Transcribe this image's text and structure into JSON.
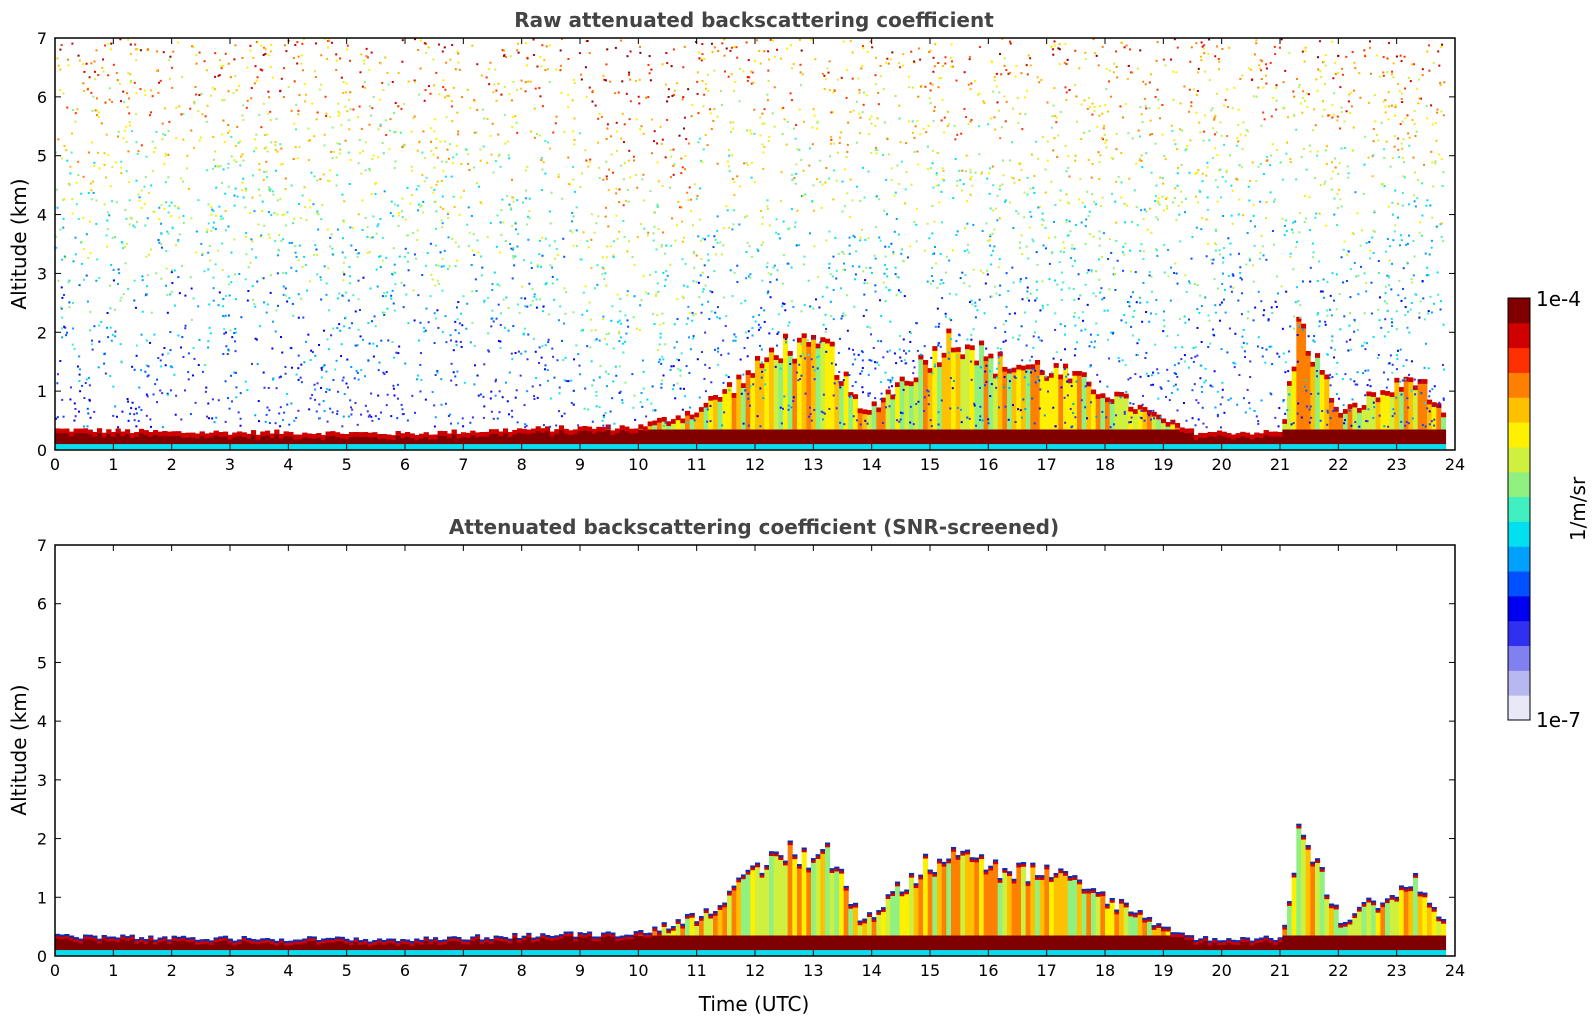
{
  "chart_data": [
    {
      "type": "heatmap",
      "title": "Raw attenuated backscattering coefficient",
      "xlabel": "",
      "ylabel": "Altitude (km)",
      "xlim": [
        0,
        24
      ],
      "ylim": [
        0,
        7
      ],
      "x_ticks": [
        "0",
        "1",
        "2",
        "3",
        "4",
        "5",
        "6",
        "7",
        "8",
        "9",
        "10",
        "11",
        "12",
        "13",
        "14",
        "15",
        "16",
        "17",
        "18",
        "19",
        "20",
        "21",
        "22",
        "23",
        "24"
      ],
      "y_ticks": [
        "0",
        "1",
        "2",
        "3",
        "4",
        "5",
        "6",
        "7"
      ],
      "aerosol_layer_top_km": {
        "x": [
          0,
          2,
          4,
          6,
          8,
          10,
          11,
          12,
          12.4,
          13,
          13.2,
          13.8,
          15.3,
          15.6,
          16,
          17,
          18,
          19,
          19.5,
          20,
          21,
          21.3,
          22,
          22.5,
          23,
          23.3,
          23.8
        ],
        "y": [
          0.35,
          0.3,
          0.3,
          0.28,
          0.35,
          0.4,
          0.7,
          1.4,
          1.8,
          1.7,
          1.8,
          0.6,
          1.9,
          1.9,
          1.5,
          1.4,
          1.0,
          0.5,
          0.3,
          0.3,
          0.3,
          2.2,
          0.6,
          0.9,
          1.1,
          1.3,
          0.5
        ]
      },
      "noise": "dense speckle above boundary layer; warmer colors aloft, strongest 9-11 UTC"
    },
    {
      "type": "heatmap",
      "title": "Attenuated backscattering coefficient (SNR-screened)",
      "xlabel": "Time (UTC)",
      "ylabel": "Altitude (km)",
      "xlim": [
        0,
        24
      ],
      "ylim": [
        0,
        7
      ],
      "x_ticks": [
        "0",
        "1",
        "2",
        "3",
        "4",
        "5",
        "6",
        "7",
        "8",
        "9",
        "10",
        "11",
        "12",
        "13",
        "14",
        "15",
        "16",
        "17",
        "18",
        "19",
        "20",
        "21",
        "22",
        "23",
        "24"
      ],
      "y_ticks": [
        "0",
        "1",
        "2",
        "3",
        "4",
        "5",
        "6",
        "7"
      ],
      "aerosol_layer_top_km": {
        "x": [
          0,
          2,
          4,
          6,
          8,
          10,
          11,
          12,
          12.4,
          13,
          13.2,
          13.8,
          15.3,
          15.6,
          16,
          17,
          18,
          19,
          19.5,
          20,
          21,
          21.3,
          22,
          22.5,
          23,
          23.3,
          23.8
        ],
        "y": [
          0.35,
          0.3,
          0.3,
          0.28,
          0.35,
          0.4,
          0.7,
          1.4,
          1.8,
          1.7,
          1.8,
          0.6,
          1.9,
          1.9,
          1.5,
          1.4,
          1.0,
          0.5,
          0.3,
          0.3,
          0.3,
          2.2,
          0.6,
          0.9,
          1.1,
          1.3,
          0.5
        ]
      },
      "noise": "screened: white above the aerosol layer"
    }
  ],
  "colorbar": {
    "max_label": "1e-4",
    "min_label": "1e-7",
    "unit_label": "1/m/sr",
    "colors": [
      "#e8e8f8",
      "#b8b8f0",
      "#8080f0",
      "#3030f0",
      "#0000f0",
      "#0050ff",
      "#00a0ff",
      "#00e0f0",
      "#40f0c0",
      "#90f080",
      "#d0f040",
      "#fff000",
      "#ffc000",
      "#ff8000",
      "#ff3000",
      "#d00000",
      "#800000"
    ]
  }
}
